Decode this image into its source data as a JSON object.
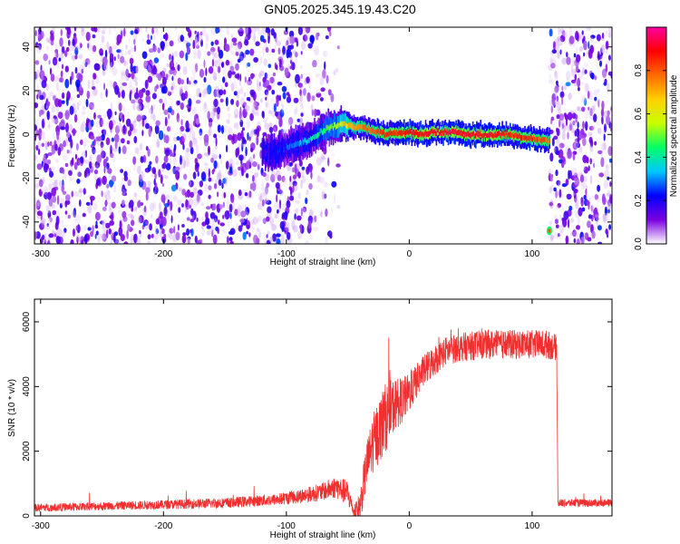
{
  "figure": {
    "title": "GN05.2025.345.19.43.C20"
  },
  "chart_data": [
    {
      "type": "heatmap",
      "name": "spectrogram",
      "xlabel": "Height of straight line (km)",
      "ylabel": "Frequency (Hz)",
      "xlim": [
        -305,
        165
      ],
      "ylim": [
        -50,
        49
      ],
      "x_ticks": [
        -300,
        -200,
        -100,
        0,
        100
      ],
      "y_ticks": [
        -40,
        -20,
        0,
        20,
        40
      ],
      "colorbar": {
        "label": "Normalized spectral amplitude",
        "range": [
          0,
          1
        ],
        "ticks": [
          "0.0",
          "0.2",
          "0.4",
          "0.6",
          "0.8"
        ],
        "colors": [
          "#ffffff",
          "#7a00e0",
          "#0000ff",
          "#00c8ff",
          "#00ff66",
          "#c8ff00",
          "#ffd000",
          "#ff6a00",
          "#ff0000",
          "#ff00a0"
        ]
      },
      "noise_regions": [
        {
          "x_from": -305,
          "x_to": -55,
          "amplitude": 0.12
        },
        {
          "x_from": 114,
          "x_to": 165,
          "amplitude": 0.12
        }
      ],
      "signal_ridge": {
        "x": [
          -120,
          -110,
          -100,
          -90,
          -80,
          -70,
          -60,
          -55,
          -50,
          -40,
          -30,
          -20,
          -10,
          0,
          10,
          20,
          30,
          40,
          50,
          60,
          70,
          80,
          90,
          100,
          110,
          114
        ],
        "frequency": [
          -8,
          -8,
          -6,
          -4,
          -2,
          2,
          4,
          5,
          4,
          3,
          2,
          0,
          1,
          1,
          0,
          1,
          1,
          1,
          0,
          0,
          0,
          0,
          -1,
          -2,
          -3,
          -3
        ],
        "amplitude": [
          0.15,
          0.2,
          0.25,
          0.3,
          0.4,
          0.45,
          0.55,
          0.6,
          0.7,
          0.75,
          0.8,
          0.85,
          0.85,
          0.9,
          0.9,
          0.9,
          0.9,
          0.9,
          0.9,
          0.9,
          0.9,
          0.85,
          0.85,
          0.85,
          0.8,
          0.75
        ]
      },
      "isolated_point": {
        "x": 114,
        "frequency": -44,
        "amplitude": 0.8
      }
    },
    {
      "type": "line",
      "name": "snr",
      "xlabel": "Height of straight line (km)",
      "ylabel": "SNR (10 * v/v)",
      "xlim": [
        -305,
        165
      ],
      "ylim": [
        0,
        6700
      ],
      "x_ticks": [
        -300,
        -200,
        -100,
        0,
        100
      ],
      "y_ticks": [
        0,
        2000,
        4000,
        6000
      ],
      "series": [
        {
          "color": "#f03030",
          "x": [
            -305,
            -250,
            -200,
            -150,
            -110,
            -90,
            -70,
            -60,
            -50,
            -45,
            -40,
            -35,
            -30,
            -25,
            -20,
            -15,
            -10,
            -5,
            0,
            10,
            20,
            30,
            40,
            60,
            80,
            100,
            112,
            120,
            121,
            165
          ],
          "values": [
            250,
            300,
            350,
            400,
            500,
            600,
            750,
            900,
            700,
            100,
            300,
            1500,
            2200,
            2600,
            3000,
            3300,
            3500,
            3600,
            3800,
            4400,
            4800,
            5100,
            5200,
            5300,
            5300,
            5300,
            5300,
            5200,
            400,
            400
          ],
          "noise": [
            120,
            130,
            140,
            160,
            180,
            220,
            280,
            350,
            400,
            150,
            500,
            700,
            900,
            1000,
            1100,
            900,
            800,
            700,
            600,
            500,
            500,
            450,
            450,
            450,
            450,
            450,
            450,
            400,
            120,
            120
          ]
        }
      ]
    }
  ]
}
